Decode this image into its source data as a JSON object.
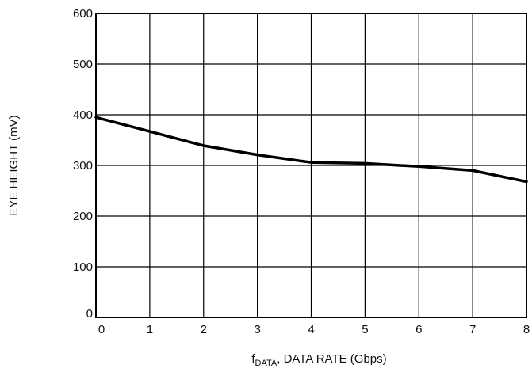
{
  "chart_data": {
    "type": "line",
    "ylabel": "EYE HEIGHT (mV)",
    "xlabel": {
      "main": "f",
      "subscript": "DATA",
      "rest": ", DATA RATE (Gbps)"
    },
    "xlim": [
      0,
      8
    ],
    "ylim": [
      0,
      600
    ],
    "x_ticks": [
      "0",
      "1",
      "2",
      "3",
      "4",
      "5",
      "6",
      "7",
      "8"
    ],
    "y_ticks": [
      "0",
      "100",
      "200",
      "300",
      "400",
      "500",
      "600"
    ],
    "grid": true,
    "series": [
      {
        "x": [
          0,
          1,
          2,
          3,
          4,
          5,
          6,
          7,
          8
        ],
        "y": [
          395,
          367,
          339,
          321,
          306,
          304,
          298,
          290,
          268
        ]
      }
    ],
    "colors": {
      "line": "#000000",
      "grid": "#000000"
    }
  }
}
